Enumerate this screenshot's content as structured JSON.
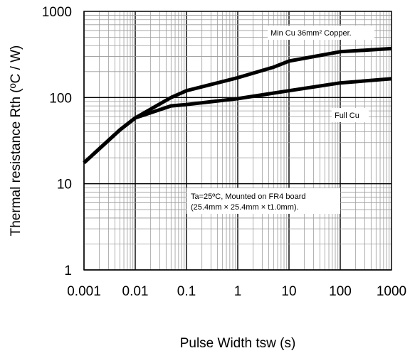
{
  "chart_data": {
    "type": "line",
    "xlabel": "Pulse Width tsw (s)",
    "ylabel": "Thermal  resistance Rth  (ºC / W)",
    "x_scale": "log",
    "y_scale": "log",
    "xlim": [
      0.001,
      1000
    ],
    "ylim": [
      1,
      1000
    ],
    "x_ticks": [
      "0.001",
      "0.01",
      "0.1",
      "1",
      "10",
      "100",
      "1000"
    ],
    "y_ticks": [
      "1",
      "10",
      "100",
      "1000"
    ],
    "grid": true,
    "series": [
      {
        "name": "Min Cu 36mm² Copper.",
        "x": [
          0.001,
          0.005,
          0.01,
          0.05,
          0.1,
          1,
          5,
          10,
          100,
          1000
        ],
        "y": [
          17.5,
          42,
          58,
          100,
          120,
          170,
          225,
          265,
          340,
          370
        ]
      },
      {
        "name": "Full Cu",
        "x": [
          0.001,
          0.005,
          0.01,
          0.05,
          0.1,
          1,
          10,
          100,
          1000
        ],
        "y": [
          17.5,
          42,
          58,
          80,
          83,
          97,
          120,
          148,
          165
        ]
      }
    ],
    "annotations": [
      "Ta=25ºC, Mounted on FR4 board",
      "(25.4mm × 25.4mm × t1.0mm)."
    ]
  }
}
